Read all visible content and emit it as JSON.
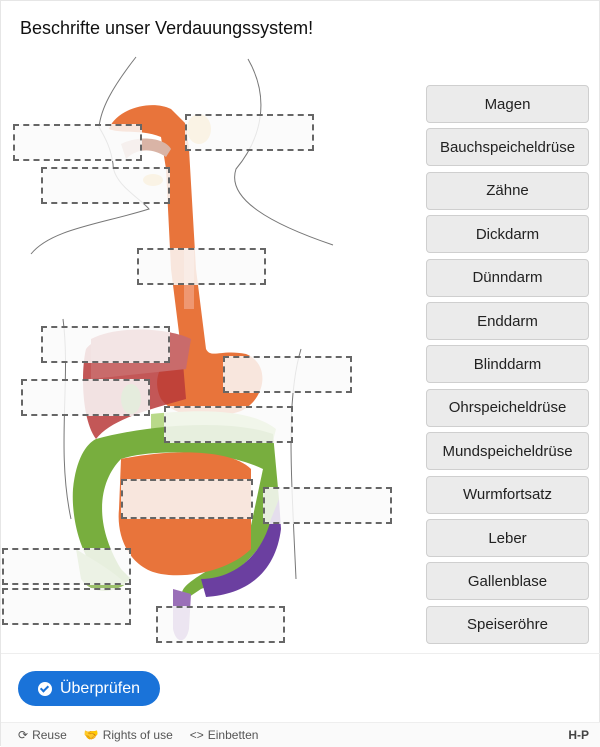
{
  "title": "Beschrifte unser Verdauungssystem!",
  "draggables": [
    "Magen",
    "Bauchspeicheldrüse",
    "Zähne",
    "Dickdarm",
    "Dünndarm",
    "Enddarm",
    "Blinddarm",
    "Ohrspeicheldrüse",
    "Mundspeicheldrüse",
    "Wurmfortsatz",
    "Leber",
    "Gallenblase",
    "Speiseröhre"
  ],
  "check_button": "Überprüfen",
  "footer": {
    "reuse": "Reuse",
    "rights": "Rights of use",
    "embed": "Einbetten",
    "logo": "H-P"
  },
  "colors": {
    "accent": "#1a73d9"
  }
}
